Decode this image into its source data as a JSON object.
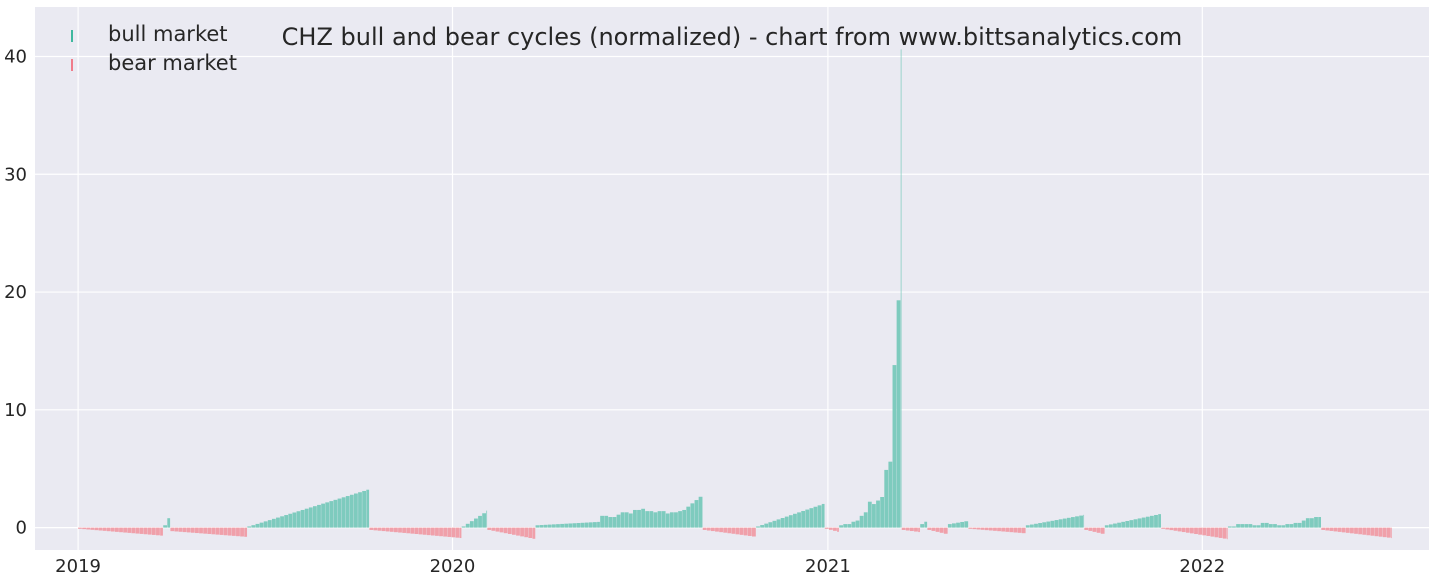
{
  "chart_data": {
    "type": "bar",
    "title": "CHZ bull and bear cycles (normalized)  - chart from www.bittsanalytics.com",
    "xlabel": "",
    "ylabel": "",
    "x_range": [
      "2018-11-20",
      "2022-08-10"
    ],
    "ylim": [
      -1.9,
      44.2
    ],
    "grid": true,
    "legend_position": "top-left",
    "x_ticks": [
      {
        "label": "2019",
        "date": "2019-01-01"
      },
      {
        "label": "2020",
        "date": "2020-01-01"
      },
      {
        "label": "2021",
        "date": "2021-01-01"
      },
      {
        "label": "2022",
        "date": "2022-01-01"
      }
    ],
    "y_ticks": [
      {
        "label": "0",
        "value": 0
      },
      {
        "label": "10",
        "value": 10
      },
      {
        "label": "20",
        "value": 20
      },
      {
        "label": "30",
        "value": 30
      },
      {
        "label": "40",
        "value": 40
      }
    ],
    "series": [
      {
        "name": "bull market",
        "color": "#7ecbbe",
        "legend_marker_color": "#3fb89e",
        "segments": [
          {
            "start": "2019-03-25",
            "end": "2019-04-01",
            "values": [
              0.2,
              0.3,
              1.2,
              1.4,
              0.8,
              0.3,
              0.2
            ]
          },
          {
            "start": "2019-06-15",
            "end": "2019-10-12",
            "from": 0.1,
            "to": 3.3
          },
          {
            "start": "2020-01-10",
            "end": "2020-02-04",
            "from": 0.1,
            "to": 1.5
          },
          {
            "start": "2020-03-22",
            "end": "2020-05-24",
            "from": 0.2,
            "to": 0.5
          },
          {
            "start": "2020-05-24",
            "end": "2020-08-12",
            "values": [
              1.0,
              0.9,
              1.1,
              1.3,
              1.2,
              1.5,
              1.6,
              1.4,
              1.3,
              1.4,
              1.2,
              1.3,
              1.4
            ]
          },
          {
            "start": "2020-08-12",
            "end": "2020-09-01",
            "from": 1.5,
            "to": 2.9
          },
          {
            "start": "2020-10-23",
            "end": "2020-12-29",
            "from": 0.1,
            "to": 2.1
          },
          {
            "start": "2021-01-12",
            "end": "2021-03-14",
            "values": [
              0.2,
              0.3,
              0.3,
              0.4,
              0.5,
              0.6,
              0.8,
              1.0,
              1.3,
              1.8,
              2.2,
              2.0,
              2.3,
              3.1,
              2.6,
              4.9,
              6.1,
              5.6,
              13.8,
              12.5,
              19.3,
              40.6
            ]
          },
          {
            "start": "2021-04-01",
            "end": "2021-04-08",
            "values": [
              0.3,
              0.5
            ]
          },
          {
            "start": "2021-04-28",
            "end": "2021-05-18",
            "from": 0.3,
            "to": 0.6
          },
          {
            "start": "2021-07-13",
            "end": "2021-09-08",
            "from": 0.2,
            "to": 1.1
          },
          {
            "start": "2021-09-28",
            "end": "2021-11-22",
            "from": 0.2,
            "to": 1.2
          },
          {
            "start": "2022-01-26",
            "end": "2022-04-27",
            "values": [
              0.1,
              0.3,
              0.3,
              0.2,
              0.4,
              0.3,
              0.2,
              0.3,
              0.4,
              0.6,
              0.8,
              0.9
            ]
          }
        ]
      },
      {
        "name": "bear market",
        "color": "#f0a0aa",
        "legend_marker_color": "#f07c8a",
        "segments": [
          {
            "start": "2019-01-01",
            "end": "2019-03-25",
            "from": -0.1,
            "to": -0.7
          },
          {
            "start": "2019-04-01",
            "end": "2019-06-15",
            "from": -0.3,
            "to": -0.8
          },
          {
            "start": "2019-10-12",
            "end": "2020-01-10",
            "from": -0.2,
            "to": -0.9
          },
          {
            "start": "2020-02-04",
            "end": "2020-03-22",
            "from": -0.2,
            "to": -1.0
          },
          {
            "start": "2020-09-01",
            "end": "2020-10-23",
            "from": -0.2,
            "to": -0.8
          },
          {
            "start": "2020-12-29",
            "end": "2021-01-12",
            "from": -0.1,
            "to": -0.4
          },
          {
            "start": "2021-03-14",
            "end": "2021-04-01",
            "from": -0.2,
            "to": -0.4
          },
          {
            "start": "2021-04-08",
            "end": "2021-04-28",
            "from": -0.2,
            "to": -0.6
          },
          {
            "start": "2021-05-18",
            "end": "2021-07-13",
            "from": -0.1,
            "to": -0.5
          },
          {
            "start": "2021-09-08",
            "end": "2021-09-28",
            "from": -0.2,
            "to": -0.6
          },
          {
            "start": "2021-11-22",
            "end": "2022-01-26",
            "from": -0.1,
            "to": -1.0
          },
          {
            "start": "2022-04-27",
            "end": "2022-07-05",
            "from": -0.2,
            "to": -0.9
          }
        ]
      }
    ]
  }
}
